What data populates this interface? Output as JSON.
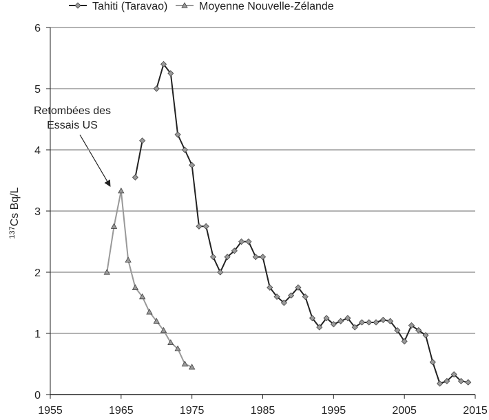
{
  "chart_data": {
    "type": "line",
    "y_label": {
      "superscript": "137",
      "text": "Cs Bq/L"
    },
    "annotation": [
      "Retombées des",
      "Essais US"
    ],
    "xlim": [
      1955,
      2015
    ],
    "xticks": [
      1955,
      1965,
      1975,
      1985,
      1995,
      2005,
      2015
    ],
    "ylim": [
      0,
      6
    ],
    "yticks": [
      0,
      1,
      2,
      3,
      4,
      5,
      6
    ],
    "grid": true,
    "series": [
      {
        "name": "Tahiti (Taravao)",
        "color": "#222222",
        "marker": "diamond",
        "marker_color": "#9a9a9a",
        "x": [
          1967,
          1968,
          1969,
          1970,
          1971,
          1972,
          1973,
          1974,
          1975,
          1976,
          1977,
          1978,
          1979,
          1980,
          1981,
          1982,
          1983,
          1984,
          1985,
          1986,
          1987,
          1988,
          1989,
          1990,
          1991,
          1992,
          1993,
          1994,
          1995,
          1996,
          1997,
          1998,
          1999,
          2000,
          2001,
          2002,
          2003,
          2004,
          2005,
          2006,
          2007,
          2008,
          2009,
          2010,
          2011,
          2012,
          2013,
          2014
        ],
        "values": [
          3.55,
          4.15,
          null,
          5.0,
          5.4,
          5.25,
          4.25,
          4.0,
          3.75,
          2.75,
          2.75,
          2.25,
          2.0,
          2.25,
          2.35,
          2.5,
          2.5,
          2.25,
          2.25,
          1.75,
          1.6,
          1.5,
          1.62,
          1.75,
          1.6,
          1.25,
          1.1,
          1.25,
          1.15,
          1.2,
          1.25,
          1.1,
          1.18,
          1.18,
          1.18,
          1.22,
          1.2,
          1.05,
          0.87,
          1.13,
          1.05,
          0.97,
          0.53,
          0.18,
          0.22,
          0.33,
          0.22,
          0.2
        ]
      },
      {
        "name": "Moyenne Nouvelle-Zélande",
        "color": "#999999",
        "marker": "triangle",
        "marker_color": "#9a9a9a",
        "x": [
          1963,
          1964,
          1965,
          1966,
          1967,
          1968,
          1969,
          1970,
          1971,
          1972,
          1973,
          1974,
          1975
        ],
        "values": [
          2.0,
          2.75,
          3.33,
          2.2,
          1.75,
          1.6,
          1.35,
          1.2,
          1.05,
          0.85,
          0.75,
          0.5,
          0.45
        ]
      }
    ]
  }
}
